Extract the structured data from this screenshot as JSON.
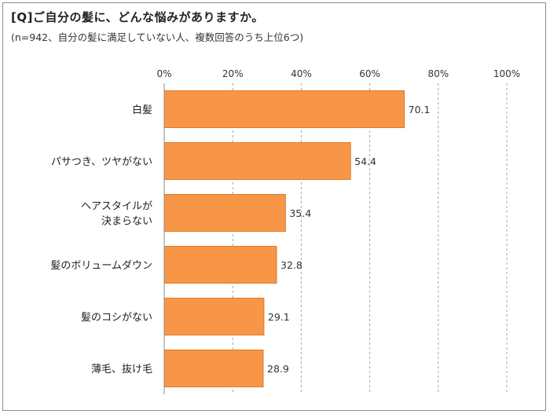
{
  "chart_data": {
    "type": "bar",
    "orientation": "horizontal",
    "title": "[Q]ご自分の髪に、どんな悩みがありますか。",
    "subtitle": "(n=942、自分の髪に満足していない人、複数回答のうち上位6つ)",
    "categories": [
      [
        "白髪"
      ],
      [
        "パサつき、ツヤがない"
      ],
      [
        "ヘアスタイルが",
        "決まらない"
      ],
      [
        "髪のボリュームダウン"
      ],
      [
        "髪のコシがない"
      ],
      [
        "薄毛、抜け毛"
      ]
    ],
    "values": [
      70.1,
      54.4,
      35.4,
      32.8,
      29.1,
      28.9
    ],
    "value_labels": [
      "70.1",
      "54.4",
      "35.4",
      "32.8",
      "29.1",
      "28.9"
    ],
    "xlim": [
      0,
      100
    ],
    "ticks": [
      0,
      20,
      40,
      60,
      80,
      100
    ],
    "tick_labels": [
      "0%",
      "20%",
      "40%",
      "60%",
      "80%",
      "100%"
    ],
    "grid": "vertical dashed",
    "bar_color": "#f79646",
    "bar_border_color": "#e07a26"
  }
}
